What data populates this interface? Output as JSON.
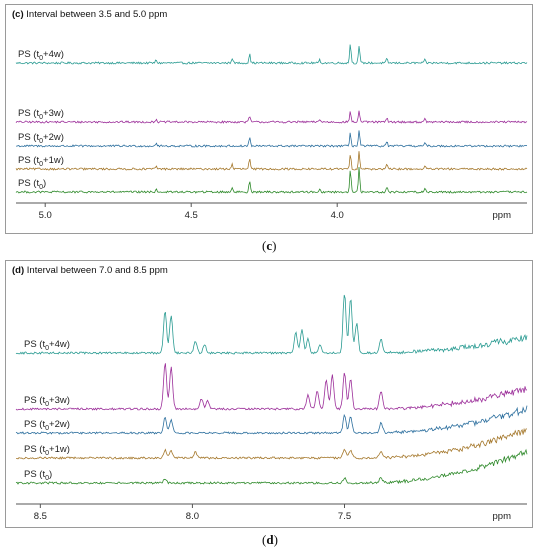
{
  "chart_data": [
    {
      "type": "line",
      "panel_id": "c",
      "panel_letter": "(c)",
      "title_prefix": "(c)",
      "title": "Interval between 3.5 and 5.0 ppm",
      "xlabel": "ppm",
      "xlim": [
        5.1,
        3.35
      ],
      "x_reversed": true,
      "xticks": [
        {
          "value": 5.0,
          "label": "5.0"
        },
        {
          "value": 4.5,
          "label": "4.5"
        },
        {
          "value": 4.0,
          "label": "4.0"
        }
      ],
      "grid": false,
      "series": [
        {
          "name": "PS (t0+4w)",
          "label_main": "PS (t",
          "label_sub": "0",
          "label_tail": "+4w)",
          "color": "#2a9b92",
          "peaks": [
            [
              4.36,
              5
            ],
            [
              4.3,
              9
            ],
            [
              3.955,
              20
            ],
            [
              3.925,
              18
            ],
            [
              3.83,
              4
            ],
            [
              4.62,
              3
            ],
            [
              4.06,
              3
            ],
            [
              3.7,
              3
            ]
          ]
        },
        {
          "name": "PS (t0+3w)",
          "label_main": "PS (t",
          "label_sub": "0",
          "label_tail": "+3w)",
          "color": "#9c2f9a",
          "peaks": [
            [
              4.3,
              6
            ],
            [
              3.955,
              11
            ],
            [
              3.925,
              12
            ],
            [
              3.83,
              4
            ],
            [
              4.62,
              3
            ],
            [
              4.06,
              3
            ],
            [
              3.7,
              3
            ]
          ]
        },
        {
          "name": "PS (t0+2w)",
          "label_main": "PS (t",
          "label_sub": "0",
          "label_tail": "+2w)",
          "color": "#2c6f9e",
          "peaks": [
            [
              4.3,
              9
            ],
            [
              3.955,
              13
            ],
            [
              3.925,
              16
            ],
            [
              3.83,
              4
            ],
            [
              4.62,
              3
            ],
            [
              3.7,
              3
            ]
          ]
        },
        {
          "name": "PS (t0+1w)",
          "label_main": "PS (t",
          "label_sub": "0",
          "label_tail": "+1w)",
          "color": "#a5782c",
          "peaks": [
            [
              4.36,
              5
            ],
            [
              4.3,
              10
            ],
            [
              3.955,
              15
            ],
            [
              3.925,
              18
            ],
            [
              3.83,
              4
            ],
            [
              4.62,
              3
            ],
            [
              3.7,
              3
            ]
          ]
        },
        {
          "name": "PS (t0)",
          "label_main": "PS (t",
          "label_sub": "0",
          "label_tail": ")",
          "color": "#2f8a2b",
          "peaks": [
            [
              4.36,
              5
            ],
            [
              4.3,
              12
            ],
            [
              3.955,
              22
            ],
            [
              3.925,
              25
            ],
            [
              3.83,
              5
            ],
            [
              4.62,
              3
            ],
            [
              4.06,
              3
            ],
            [
              3.7,
              4
            ]
          ]
        }
      ]
    },
    {
      "type": "line",
      "panel_id": "d",
      "panel_letter": "(d)",
      "title_prefix": "(d)",
      "title": "Interval between 7.0 and 8.5 ppm",
      "xlabel": "ppm",
      "xlim": [
        8.58,
        6.9
      ],
      "x_reversed": true,
      "xticks": [
        {
          "value": 8.5,
          "label": "8.5"
        },
        {
          "value": 8.0,
          "label": "8.0"
        },
        {
          "value": 7.5,
          "label": "7.5"
        }
      ],
      "grid": false,
      "series": [
        {
          "name": "PS (t0+4w)",
          "label_main": "PS (t",
          "label_sub": "0",
          "label_tail": "+4w)",
          "color": "#2a9b92",
          "peaks": [
            [
              8.09,
              42
            ],
            [
              8.07,
              38
            ],
            [
              7.99,
              12
            ],
            [
              7.96,
              8
            ],
            [
              7.66,
              20
            ],
            [
              7.64,
              24
            ],
            [
              7.62,
              14
            ],
            [
              7.58,
              8
            ],
            [
              7.5,
              60
            ],
            [
              7.48,
              55
            ],
            [
              7.46,
              30
            ],
            [
              7.38,
              14
            ]
          ]
        },
        {
          "name": "PS (t0+3w)",
          "label_main": "PS (t",
          "label_sub": "0",
          "label_tail": "+3w)",
          "color": "#9c2f9a",
          "peaks": [
            [
              8.09,
              46
            ],
            [
              8.07,
              42
            ],
            [
              7.97,
              10
            ],
            [
              7.95,
              8
            ],
            [
              7.62,
              14
            ],
            [
              7.59,
              18
            ],
            [
              7.56,
              30
            ],
            [
              7.54,
              34
            ],
            [
              7.5,
              36
            ],
            [
              7.48,
              30
            ],
            [
              7.38,
              18
            ]
          ]
        },
        {
          "name": "PS (t0+2w)",
          "label_main": "PS (t",
          "label_sub": "0",
          "label_tail": "+2w)",
          "color": "#2c6f9e",
          "peaks": [
            [
              8.09,
              16
            ],
            [
              8.07,
              14
            ],
            [
              7.5,
              18
            ],
            [
              7.48,
              16
            ],
            [
              7.38,
              10
            ]
          ]
        },
        {
          "name": "PS (t0+1w)",
          "label_main": "PS (t",
          "label_sub": "0",
          "label_tail": "+1w)",
          "color": "#a5782c",
          "peaks": [
            [
              8.09,
              8
            ],
            [
              8.07,
              7
            ],
            [
              7.99,
              6
            ],
            [
              7.5,
              9
            ],
            [
              7.48,
              8
            ],
            [
              7.38,
              6
            ]
          ]
        },
        {
          "name": "PS (t0)",
          "label_main": "PS (t",
          "label_sub": "0",
          "label_tail": ")",
          "color": "#2f8a2b",
          "peaks": [
            [
              8.09,
              4
            ],
            [
              7.5,
              5
            ],
            [
              7.38,
              5
            ]
          ]
        }
      ]
    }
  ],
  "captions": {
    "c": "c",
    "d": "d"
  }
}
